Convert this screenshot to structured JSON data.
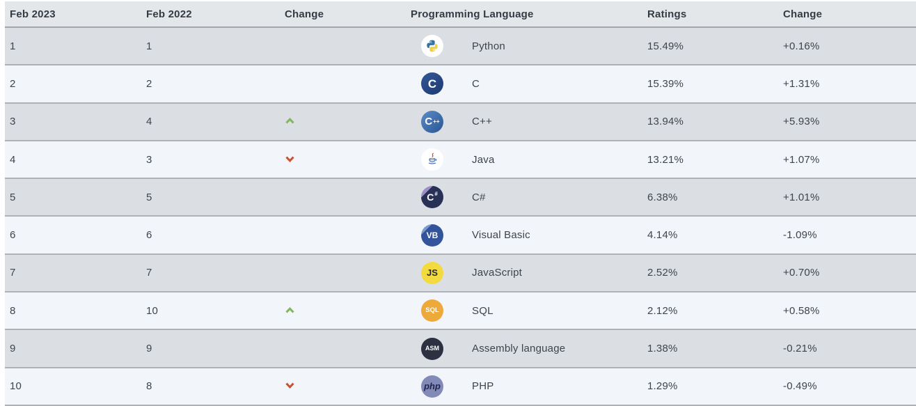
{
  "colors": {
    "header_bg": "#e4e7ea",
    "header_text": "#333b44",
    "header_separator": "#a2a6ab",
    "row_gray": "#dbdfe3",
    "row_light": "#f2f5f9",
    "separator": "#aeb1b5",
    "text": "#3d444d",
    "up_arrow": "#84b55f",
    "down_arrow": "#c85231"
  },
  "table": {
    "columns": [
      "Feb 2023",
      "Feb 2022",
      "Change",
      "Programming Language",
      "Ratings",
      "Change"
    ],
    "rows": [
      {
        "rank_2023": "1",
        "rank_2022": "1",
        "trend": "",
        "icon": "python",
        "language": "Python",
        "ratings": "15.49%",
        "change": "+0.16%"
      },
      {
        "rank_2023": "2",
        "rank_2022": "2",
        "trend": "",
        "icon": "c",
        "language": "C",
        "ratings": "15.39%",
        "change": "+1.31%"
      },
      {
        "rank_2023": "3",
        "rank_2022": "4",
        "trend": "up",
        "icon": "cpp",
        "language": "C++",
        "ratings": "13.94%",
        "change": "+5.93%"
      },
      {
        "rank_2023": "4",
        "rank_2022": "3",
        "trend": "down",
        "icon": "java",
        "language": "Java",
        "ratings": "13.21%",
        "change": "+1.07%"
      },
      {
        "rank_2023": "5",
        "rank_2022": "5",
        "trend": "",
        "icon": "csharp",
        "language": "C#",
        "ratings": "6.38%",
        "change": "+1.01%"
      },
      {
        "rank_2023": "6",
        "rank_2022": "6",
        "trend": "",
        "icon": "vb",
        "language": "Visual Basic",
        "ratings": "4.14%",
        "change": "-1.09%"
      },
      {
        "rank_2023": "7",
        "rank_2022": "7",
        "trend": "",
        "icon": "js",
        "language": "JavaScript",
        "ratings": "2.52%",
        "change": "+0.70%"
      },
      {
        "rank_2023": "8",
        "rank_2022": "10",
        "trend": "up",
        "icon": "sql",
        "language": "SQL",
        "ratings": "2.12%",
        "change": "+0.58%"
      },
      {
        "rank_2023": "9",
        "rank_2022": "9",
        "trend": "",
        "icon": "asm",
        "language": "Assembly language",
        "ratings": "1.38%",
        "change": "-0.21%"
      },
      {
        "rank_2023": "10",
        "rank_2022": "8",
        "trend": "down",
        "icon": "php",
        "language": "PHP",
        "ratings": "1.29%",
        "change": "-0.49%"
      }
    ]
  },
  "icons": {
    "python": {
      "type": "svg",
      "bg": "#ffffff"
    },
    "c": {
      "type": "text",
      "bg": "linear-gradient(140deg, #2e508f 25%, #22407a 75%)",
      "fg": "#ffffff",
      "label": "C",
      "size": "17px",
      "weight": "800"
    },
    "cpp": {
      "type": "text",
      "bg": "linear-gradient(135deg, #5e8cc4 0%, #32609f 80%)",
      "fg": "#ffffff",
      "label": "C",
      "sub": "++",
      "size": "15px",
      "weight": "800"
    },
    "java": {
      "type": "svg",
      "bg": "#ffffff"
    },
    "csharp": {
      "type": "text",
      "bg": "linear-gradient(135deg, #9e8dc8 26%, #283056 26%)",
      "fg": "#ffffff",
      "label": "C",
      "sub": "#",
      "size": "14px",
      "weight": "800"
    },
    "vb": {
      "type": "text",
      "bg": "linear-gradient(135deg, #7d99ce 24%, #33549b 24%)",
      "fg": "#ffffff",
      "label": "VB",
      "size": "12px",
      "weight": "700"
    },
    "js": {
      "type": "text",
      "bg": "#f3da3e",
      "fg": "#262b3d",
      "label": "JS",
      "size": "13px",
      "weight": "800"
    },
    "sql": {
      "type": "text",
      "bg": "#edaa3a",
      "fg": "#ffffff",
      "label": "SQL",
      "size": "9.5px",
      "weight": "800"
    },
    "asm": {
      "type": "text",
      "bg": "#2c3040",
      "fg": "#ffffff",
      "label": "ASM",
      "size": "9px",
      "weight": "800"
    },
    "php": {
      "type": "text",
      "bg": "#828ab8",
      "fg": "#20264e",
      "label": "php",
      "size": "13px",
      "weight": "700",
      "italic": true
    }
  }
}
